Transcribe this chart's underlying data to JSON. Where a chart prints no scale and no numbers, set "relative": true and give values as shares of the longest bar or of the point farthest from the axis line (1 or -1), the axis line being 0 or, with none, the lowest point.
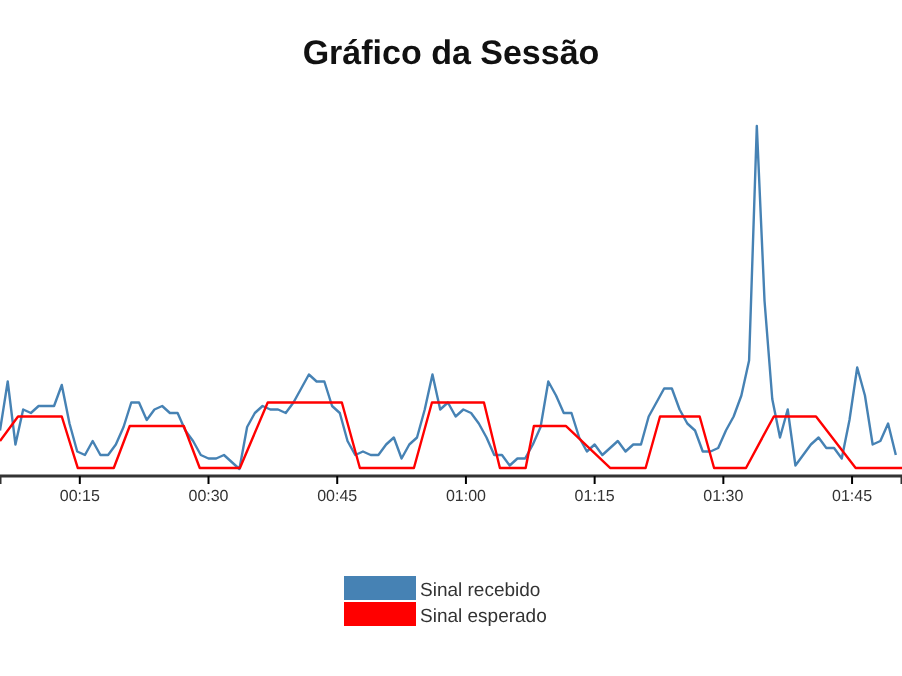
{
  "chart_data": {
    "type": "line",
    "title": "Gráfico da Sessão",
    "relative": true,
    "legend": "bottom",
    "xlim": [
      0.095,
      1.847
    ],
    "xticks": [
      {
        "value": 0.25,
        "label": "00:15"
      },
      {
        "value": 0.5,
        "label": "00:30"
      },
      {
        "value": 0.75,
        "label": "00:45"
      },
      {
        "value": 1,
        "label": "01:00"
      },
      {
        "value": 1.25,
        "label": "01:15"
      },
      {
        "value": 1.5,
        "label": "01:30"
      },
      {
        "value": 1.75,
        "label": "01:45"
      }
    ],
    "series": [
      {
        "name": "Sinal recebido",
        "color": "#4682b4",
        "x": [
          0.095,
          0.11,
          0.125,
          0.14,
          0.155,
          0.17,
          0.185,
          0.2,
          0.215,
          0.23,
          0.245,
          0.26,
          0.275,
          0.29,
          0.305,
          0.32,
          0.335,
          0.35,
          0.365,
          0.38,
          0.395,
          0.41,
          0.425,
          0.44,
          0.455,
          0.47,
          0.485,
          0.5,
          0.515,
          0.53,
          0.545,
          0.56,
          0.575,
          0.59,
          0.605,
          0.62,
          0.635,
          0.65,
          0.665,
          0.68,
          0.695,
          0.71,
          0.725,
          0.74,
          0.755,
          0.77,
          0.785,
          0.8,
          0.815,
          0.83,
          0.845,
          0.86,
          0.875,
          0.89,
          0.905,
          0.92,
          0.935,
          0.95,
          0.965,
          0.98,
          0.995,
          1.01,
          1.025,
          1.04,
          1.055,
          1.07,
          1.085,
          1.1,
          1.115,
          1.13,
          1.145,
          1.16,
          1.175,
          1.19,
          1.205,
          1.22,
          1.235,
          1.25,
          1.265,
          1.28,
          1.295,
          1.31,
          1.325,
          1.34,
          1.355,
          1.37,
          1.385,
          1.4,
          1.415,
          1.43,
          1.445,
          1.46,
          1.475,
          1.49,
          1.505,
          1.52,
          1.535,
          1.55,
          1.565,
          1.58,
          1.595,
          1.61,
          1.625,
          1.64,
          1.655,
          1.67,
          1.685,
          1.7,
          1.715,
          1.73,
          1.745,
          1.76,
          1.775,
          1.79,
          1.805,
          1.82,
          1.835
        ],
        "values": [
          0.13,
          0.27,
          0.09,
          0.19,
          0.18,
          0.2,
          0.2,
          0.2,
          0.26,
          0.15,
          0.07,
          0.06,
          0.1,
          0.06,
          0.06,
          0.09,
          0.14,
          0.21,
          0.21,
          0.16,
          0.19,
          0.2,
          0.18,
          0.18,
          0.13,
          0.1,
          0.06,
          0.05,
          0.05,
          0.06,
          0.04,
          0.02,
          0.14,
          0.18,
          0.2,
          0.19,
          0.19,
          0.18,
          0.21,
          0.25,
          0.29,
          0.27,
          0.27,
          0.2,
          0.18,
          0.1,
          0.06,
          0.07,
          0.06,
          0.06,
          0.09,
          0.11,
          0.05,
          0.09,
          0.11,
          0.19,
          0.29,
          0.19,
          0.21,
          0.17,
          0.19,
          0.18,
          0.15,
          0.11,
          0.06,
          0.06,
          0.03,
          0.05,
          0.05,
          0.09,
          0.14,
          0.27,
          0.23,
          0.18,
          0.18,
          0.11,
          0.07,
          0.09,
          0.06,
          0.08,
          0.1,
          0.07,
          0.09,
          0.09,
          0.17,
          0.21,
          0.25,
          0.25,
          0.19,
          0.15,
          0.13,
          0.07,
          0.07,
          0.08,
          0.13,
          0.17,
          0.23,
          0.33,
          1,
          0.5,
          0.22,
          0.11,
          0.19,
          0.03,
          0.06,
          0.09,
          0.11,
          0.08,
          0.08,
          0.05,
          0.16,
          0.31,
          0.23,
          0.09,
          0.1,
          0.15,
          0.06
        ]
      },
      {
        "name": "Sinal esperado",
        "color": "#ff0000",
        "x": [
          0.095,
          0.13,
          0.215,
          0.246,
          0.316,
          0.347,
          0.452,
          0.483,
          0.561,
          0.615,
          0.759,
          0.794,
          0.899,
          0.934,
          1.035,
          1.066,
          1.116,
          1.132,
          1.194,
          1.28,
          1.349,
          1.377,
          1.454,
          1.482,
          1.544,
          1.598,
          1.68,
          1.757,
          1.847
        ],
        "values": [
          0.1,
          0.17,
          0.17,
          0.023,
          0.023,
          0.143,
          0.143,
          0.023,
          0.023,
          0.21,
          0.21,
          0.023,
          0.023,
          0.21,
          0.21,
          0.023,
          0.023,
          0.143,
          0.143,
          0.023,
          0.023,
          0.17,
          0.17,
          0.023,
          0.023,
          0.17,
          0.17,
          0.023,
          0.023
        ]
      }
    ]
  }
}
